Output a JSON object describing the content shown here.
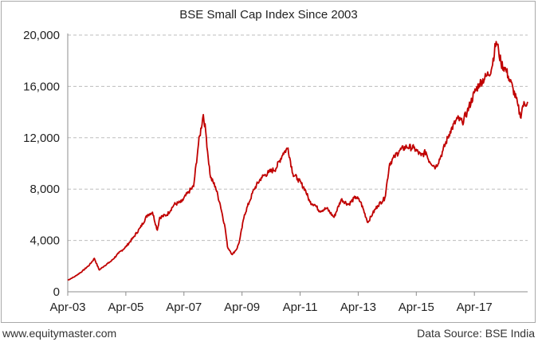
{
  "footer": {
    "website": "www.equitymaster.com",
    "source": "Data Source: BSE India"
  },
  "colors": {
    "line": "#c00000",
    "grid": "#bdbdbd",
    "axis": "#8c8c8c",
    "border": "#a9a9a9"
  },
  "chart_data": {
    "type": "line",
    "title": "BSE Small Cap Index Since 2003",
    "xlabel": "",
    "ylabel": "",
    "x_ticks": [
      "Apr-03",
      "Apr-05",
      "Apr-07",
      "Apr-09",
      "Apr-11",
      "Apr-13",
      "Apr-15",
      "Apr-17"
    ],
    "y_ticks": [
      "0",
      "4,000",
      "8,000",
      "12,000",
      "16,000",
      "20,000"
    ],
    "xlim": [
      "2003-04",
      "2019-02"
    ],
    "ylim": [
      0,
      20000
    ],
    "grid": "horizontal dashed",
    "series": [
      {
        "name": "",
        "x": [
          "2003-04",
          "2003-07",
          "2003-10",
          "2004-01",
          "2004-03",
          "2004-05",
          "2004-07",
          "2004-10",
          "2005-01",
          "2005-04",
          "2005-07",
          "2005-10",
          "2006-01",
          "2006-03",
          "2006-05",
          "2006-06",
          "2006-09",
          "2006-12",
          "2007-03",
          "2007-06",
          "2007-08",
          "2007-10",
          "2007-12",
          "2008-01",
          "2008-02",
          "2008-03",
          "2008-05",
          "2008-07",
          "2008-09",
          "2008-10",
          "2008-11",
          "2008-12",
          "2009-02",
          "2009-03",
          "2009-05",
          "2009-07",
          "2009-09",
          "2009-12",
          "2010-03",
          "2010-06",
          "2010-09",
          "2010-11",
          "2011-01",
          "2011-03",
          "2011-06",
          "2011-08",
          "2011-10",
          "2011-12",
          "2012-03",
          "2012-06",
          "2012-09",
          "2012-12",
          "2013-03",
          "2013-05",
          "2013-08",
          "2013-10",
          "2013-12",
          "2014-03",
          "2014-05",
          "2014-07",
          "2014-09",
          "2014-12",
          "2015-03",
          "2015-06",
          "2015-08",
          "2015-09",
          "2015-12",
          "2016-02",
          "2016-03",
          "2016-06",
          "2016-09",
          "2016-11",
          "2017-01",
          "2017-04",
          "2017-06",
          "2017-09",
          "2017-11",
          "2018-01",
          "2018-02",
          "2018-03",
          "2018-05",
          "2018-06",
          "2018-08",
          "2018-10",
          "2018-11",
          "2018-12",
          "2019-02"
        ],
        "values": [
          900,
          1200,
          1600,
          2100,
          2600,
          1700,
          2000,
          2400,
          3000,
          3500,
          4200,
          5000,
          6000,
          6200,
          4800,
          5800,
          6000,
          6800,
          7000,
          7800,
          8200,
          11500,
          13800,
          12500,
          10500,
          8900,
          8200,
          6800,
          5000,
          3500,
          3200,
          2900,
          3400,
          4000,
          6000,
          7000,
          8000,
          8900,
          9300,
          9600,
          10800,
          11200,
          9200,
          8800,
          8000,
          7000,
          6800,
          6300,
          6500,
          5800,
          7200,
          6800,
          7400,
          7000,
          5400,
          6100,
          6700,
          7300,
          10000,
          10500,
          11000,
          11300,
          11200,
          10600,
          10900,
          10300,
          9700,
          10500,
          11000,
          12500,
          13500,
          13200,
          14000,
          15500,
          16200,
          16800,
          17300,
          19500,
          18800,
          17800,
          17300,
          16800,
          15800,
          14500,
          13600,
          14500,
          14800
        ]
      }
    ]
  }
}
